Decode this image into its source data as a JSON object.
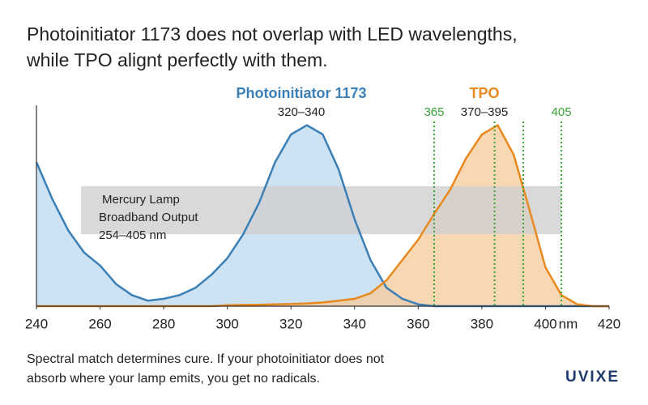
{
  "chart_data": {
    "type": "area",
    "title": [
      "Photoinitiator 1173 does not overlap with LED wavelengths,",
      "while TPO alignt perfectly with them."
    ],
    "caption": [
      "Spectral match determines cure. If your photoinitiator does not",
      "absorb where your lamp emits, you get no radicals."
    ],
    "logo": "UVIXE",
    "xlabel": "nm",
    "xlim": [
      240,
      420
    ],
    "xticks": [
      240,
      260,
      280,
      300,
      320,
      340,
      360,
      380,
      400,
      420
    ],
    "ylim": [
      0,
      1
    ],
    "x": [
      240,
      245,
      250,
      255,
      260,
      265,
      270,
      275,
      280,
      285,
      290,
      295,
      300,
      305,
      310,
      315,
      320,
      325,
      330,
      335,
      340,
      345,
      350,
      355,
      360,
      365,
      370,
      375,
      380,
      385,
      390,
      395,
      400,
      405,
      410,
      415,
      420
    ],
    "series": [
      {
        "name": "Photoinitiator 1173",
        "range_label": "320–340",
        "color": "#3a7fb5",
        "fill": "#bcd8ee",
        "values": [
          0.78,
          0.58,
          0.41,
          0.29,
          0.22,
          0.12,
          0.06,
          0.03,
          0.04,
          0.06,
          0.1,
          0.17,
          0.26,
          0.39,
          0.56,
          0.78,
          0.93,
          0.98,
          0.93,
          0.74,
          0.47,
          0.25,
          0.1,
          0.04,
          0.01,
          0,
          0,
          0,
          0,
          0,
          0,
          0,
          0,
          0,
          0,
          0,
          0
        ]
      },
      {
        "name": "TPO",
        "range_label": "370–395",
        "color": "#e8891f",
        "fill": "#f5c99a",
        "values": [
          0,
          0,
          0,
          0,
          0,
          0,
          0,
          0,
          0,
          0,
          0,
          0,
          0.005,
          0.007,
          0.008,
          0.01,
          0.012,
          0.015,
          0.02,
          0.03,
          0.04,
          0.07,
          0.14,
          0.25,
          0.36,
          0.5,
          0.63,
          0.8,
          0.93,
          0.98,
          0.82,
          0.52,
          0.21,
          0.06,
          0.01,
          0,
          0
        ]
      }
    ],
    "led_markers": [
      365,
      405
    ],
    "tpo_markers": [
      384,
      393
    ],
    "marker_color": "#3aa335",
    "band": {
      "label": [
        "Mercury Lamp",
        "Broadband Output",
        "254–405 nm"
      ],
      "x": [
        254,
        405
      ],
      "y": [
        0.39,
        0.65
      ],
      "color": "#cfcfcf"
    }
  }
}
